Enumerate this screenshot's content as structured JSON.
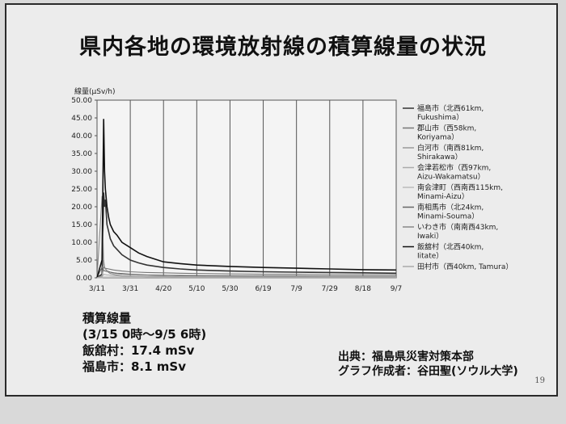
{
  "slide": {
    "title": "県内各地の環境放射線の積算線量の状況",
    "page_number": "19",
    "summary": {
      "heading": "積算線量",
      "period": "(3/15 0時～9/5 6時)",
      "rows": [
        "飯舘村：17.4 mSv",
        "福島市：8.1 mSv"
      ]
    },
    "source": {
      "line1": "出典：福島県災害対策本部",
      "line2": "グラフ作成者：谷田聖(ソウル大学)"
    }
  },
  "chart_data": {
    "type": "line",
    "ylabel": "線量(μSv/h)",
    "ylim": [
      0,
      50
    ],
    "yticks": [
      "0.00",
      "5.00",
      "10.00",
      "15.00",
      "20.00",
      "25.00",
      "30.00",
      "35.00",
      "40.00",
      "45.00",
      "50.00"
    ],
    "xlim_days": [
      0,
      180
    ],
    "xticks": [
      "3/11",
      "3/31",
      "4/20",
      "5/10",
      "5/30",
      "6/19",
      "7/9",
      "7/29",
      "8/18",
      "9/7"
    ],
    "grid": "vertical",
    "legend_position": "right",
    "x_days": [
      0,
      3,
      4,
      4.5,
      5,
      6,
      7,
      8,
      10,
      12,
      15,
      20,
      25,
      30,
      40,
      50,
      60,
      80,
      100,
      120,
      140,
      160,
      180
    ],
    "series": [
      {
        "name": "福島市（北西61km, Fukushima）",
        "color": "#333333",
        "values": [
          0.1,
          1.0,
          24.0,
          20.0,
          22.0,
          15.0,
          13.0,
          11.0,
          9.0,
          8.0,
          6.5,
          5.0,
          4.2,
          3.6,
          2.9,
          2.5,
          2.2,
          1.9,
          1.7,
          1.6,
          1.5,
          1.4,
          1.3
        ]
      },
      {
        "name": "郡山市（西58km, Koriyama）",
        "color": "#777777",
        "values": [
          0.1,
          0.5,
          3.0,
          2.8,
          2.7,
          2.6,
          2.5,
          2.4,
          2.2,
          2.1,
          1.9,
          1.7,
          1.6,
          1.5,
          1.4,
          1.3,
          1.2,
          1.1,
          1.0,
          1.0,
          0.9,
          0.9,
          0.9
        ]
      },
      {
        "name": "白河市（南西81km, Shirakawa）",
        "color": "#999999",
        "values": [
          0.1,
          0.4,
          5.0,
          3.0,
          2.5,
          2.0,
          1.8,
          1.6,
          1.4,
          1.2,
          1.0,
          0.9,
          0.8,
          0.8,
          0.7,
          0.7,
          0.6,
          0.6,
          0.5,
          0.5,
          0.5,
          0.5,
          0.5
        ]
      },
      {
        "name": "会津若松市（西97km, Aizu-Wakamatsu）",
        "color": "#aaaaaa",
        "values": [
          0.05,
          0.1,
          0.2,
          0.2,
          0.2,
          0.2,
          0.2,
          0.2,
          0.2,
          0.2,
          0.2,
          0.2,
          0.2,
          0.2,
          0.1,
          0.1,
          0.1,
          0.1,
          0.1,
          0.1,
          0.1,
          0.1,
          0.1
        ]
      },
      {
        "name": "南会津町（西南西115km, Minami-Aizu）",
        "color": "#bbbbbb",
        "values": [
          0.05,
          0.05,
          0.1,
          0.1,
          0.1,
          0.1,
          0.1,
          0.1,
          0.1,
          0.1,
          0.1,
          0.1,
          0.1,
          0.1,
          0.1,
          0.1,
          0.1,
          0.1,
          0.1,
          0.1,
          0.1,
          0.1,
          0.1
        ]
      },
      {
        "name": "南相馬市（北24km, Minami-Souma）",
        "color": "#666666",
        "values": [
          0.1,
          3.0,
          2.0,
          2.0,
          1.9,
          1.8,
          1.7,
          1.6,
          1.4,
          1.3,
          1.2,
          1.0,
          0.9,
          0.8,
          0.7,
          0.6,
          0.6,
          0.5,
          0.5,
          0.5,
          0.4,
          0.4,
          0.4
        ]
      },
      {
        "name": "いわき市（南南西43km, Iwaki）",
        "color": "#888888",
        "values": [
          0.1,
          23.0,
          4.0,
          3.0,
          2.5,
          2.0,
          1.5,
          1.2,
          1.0,
          0.8,
          0.6,
          0.5,
          0.4,
          0.3,
          0.3,
          0.2,
          0.2,
          0.2,
          0.2,
          0.2,
          0.2,
          0.2,
          0.2
        ]
      },
      {
        "name": "飯舘村（北西40km, Iitate）",
        "color": "#111111",
        "values": [
          0.1,
          5.0,
          44.7,
          30.0,
          25.0,
          20.0,
          17.0,
          15.0,
          13.0,
          12.0,
          10.0,
          8.5,
          7.0,
          6.0,
          4.5,
          4.0,
          3.6,
          3.2,
          2.9,
          2.7,
          2.5,
          2.3,
          2.2
        ]
      },
      {
        "name": "田村市（西40km, Tamura）",
        "color": "#aaaaaa",
        "values": [
          0.05,
          0.2,
          1.0,
          0.9,
          0.9,
          0.8,
          0.8,
          0.7,
          0.6,
          0.6,
          0.5,
          0.5,
          0.4,
          0.4,
          0.4,
          0.3,
          0.3,
          0.3,
          0.3,
          0.3,
          0.3,
          0.3,
          0.3
        ]
      }
    ]
  }
}
